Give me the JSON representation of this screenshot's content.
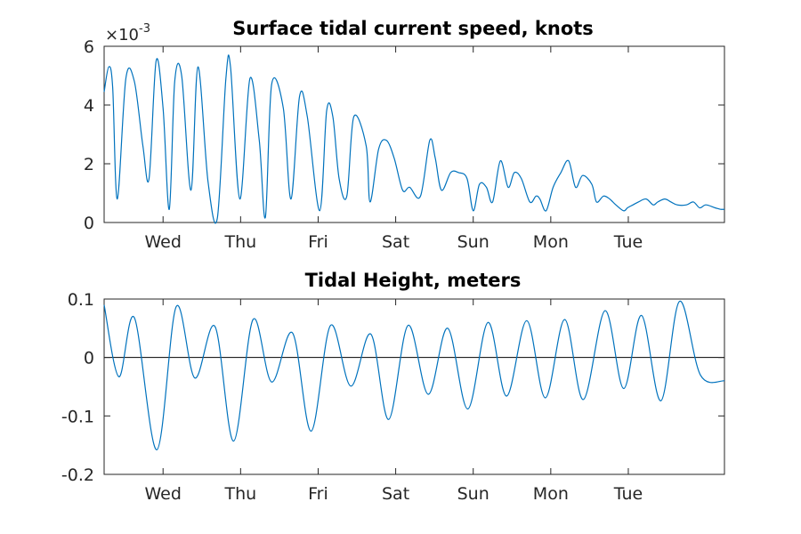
{
  "colors": {
    "series": "#0072BD",
    "axis": "#262626",
    "zero_line": "#000000"
  },
  "chart_data": [
    {
      "type": "line",
      "title": "Surface tidal current speed, knots",
      "exponent_label": "×10",
      "exponent_power": "-3",
      "x_tick_labels": [
        "Wed",
        "Thu",
        "Fri",
        "Sat",
        "Sun",
        "Mon",
        "Tue"
      ],
      "x_tick_positions_days": [
        1,
        2,
        3,
        4,
        5,
        6,
        7
      ],
      "xlim_days": [
        0.24,
        8.24
      ],
      "ylim": [
        0,
        0.006
      ],
      "y_ticks": [
        {
          "value": 0,
          "label": "0"
        },
        {
          "value": 0.002,
          "label": "2"
        },
        {
          "value": 0.004,
          "label": "4"
        },
        {
          "value": 0.006,
          "label": "6"
        }
      ],
      "series": [
        {
          "x_days": [
            0.24,
            0.3,
            0.35,
            0.41,
            0.52,
            0.63,
            0.74,
            0.82,
            0.91,
            1.0,
            1.08,
            1.15,
            1.24,
            1.36,
            1.45,
            1.58,
            1.7,
            1.81,
            1.87,
            1.99,
            2.12,
            2.24,
            2.32,
            2.4,
            2.55,
            2.65,
            2.76,
            2.86,
            3.02,
            3.11,
            3.19,
            3.27,
            3.37,
            3.46,
            3.62,
            3.67,
            3.78,
            3.88,
            3.98,
            4.09,
            4.18,
            4.32,
            4.44,
            4.51,
            4.59,
            4.71,
            4.81,
            4.92,
            5.0,
            5.08,
            5.17,
            5.25,
            5.35,
            5.45,
            5.53,
            5.62,
            5.73,
            5.81,
            5.86,
            5.94,
            6.03,
            6.13,
            6.23,
            6.32,
            6.41,
            6.53,
            6.59,
            6.68,
            6.76,
            6.84,
            6.94,
            6.99,
            7.06,
            7.13,
            7.23,
            7.32,
            7.38,
            7.47,
            7.55,
            7.63,
            7.75,
            7.84,
            7.92,
            8.0,
            8.12,
            8.19,
            8.24
          ],
          "y": [
            0.00445,
            0.0053,
            0.0046,
            0.0008,
            0.0049,
            0.0048,
            0.0026,
            0.0015,
            0.0055,
            0.0039,
            0.00045,
            0.0048,
            0.005,
            0.0011,
            0.0053,
            0.0014,
            0.00015,
            0.0049,
            0.0053,
            0.0008,
            0.0049,
            0.0028,
            0.00018,
            0.0047,
            0.0039,
            0.0008,
            0.0043,
            0.0036,
            0.0004,
            0.0038,
            0.0036,
            0.0015,
            0.0009,
            0.0036,
            0.0026,
            0.0007,
            0.0025,
            0.0028,
            0.0022,
            0.0011,
            0.0012,
            0.0009,
            0.0028,
            0.0022,
            0.0011,
            0.0017,
            0.0017,
            0.0015,
            0.0004,
            0.0013,
            0.0012,
            0.0007,
            0.0021,
            0.0012,
            0.0017,
            0.0015,
            0.0007,
            0.0009,
            0.0008,
            0.0004,
            0.0012,
            0.0017,
            0.0021,
            0.0012,
            0.0016,
            0.0013,
            0.0007,
            0.0009,
            0.0008,
            0.0006,
            0.0004,
            0.0005,
            0.0006,
            0.0007,
            0.0008,
            0.0006,
            0.0007,
            0.0008,
            0.0007,
            0.0006,
            0.0006,
            0.0007,
            0.0005,
            0.0006,
            0.0005,
            0.00045,
            0.00045
          ]
        }
      ]
    },
    {
      "type": "line",
      "title": "Tidal Height, meters",
      "x_tick_labels": [
        "Wed",
        "Thu",
        "Fri",
        "Sat",
        "Sun",
        "Mon",
        "Tue"
      ],
      "x_tick_positions_days": [
        1,
        2,
        3,
        4,
        5,
        6,
        7
      ],
      "xlim_days": [
        0.24,
        8.24
      ],
      "ylim": [
        -0.2,
        0.1
      ],
      "y_ticks": [
        {
          "value": 0.1,
          "label": "0.1"
        },
        {
          "value": 0,
          "label": "0"
        },
        {
          "value": -0.1,
          "label": "-0.1"
        },
        {
          "value": -0.2,
          "label": "-0.2"
        }
      ],
      "zero_line": true,
      "series": [
        {
          "x_days": [
            0.24,
            0.43,
            0.63,
            0.92,
            1.17,
            1.41,
            1.67,
            1.91,
            2.16,
            2.4,
            2.67,
            2.91,
            3.16,
            3.42,
            3.68,
            3.91,
            4.16,
            4.42,
            4.67,
            4.93,
            5.19,
            5.43,
            5.69,
            5.93,
            6.18,
            6.42,
            6.7,
            6.94,
            7.17,
            7.42,
            7.66,
            7.93,
            8.24
          ],
          "y": [
            0.09,
            -0.033,
            0.068,
            -0.158,
            0.087,
            -0.035,
            0.053,
            -0.143,
            0.065,
            -0.042,
            0.042,
            -0.126,
            0.055,
            -0.049,
            0.04,
            -0.106,
            0.055,
            -0.063,
            0.05,
            -0.088,
            0.06,
            -0.066,
            0.063,
            -0.069,
            0.065,
            -0.072,
            0.08,
            -0.053,
            0.072,
            -0.074,
            0.096,
            -0.03,
            -0.04
          ]
        }
      ]
    }
  ]
}
